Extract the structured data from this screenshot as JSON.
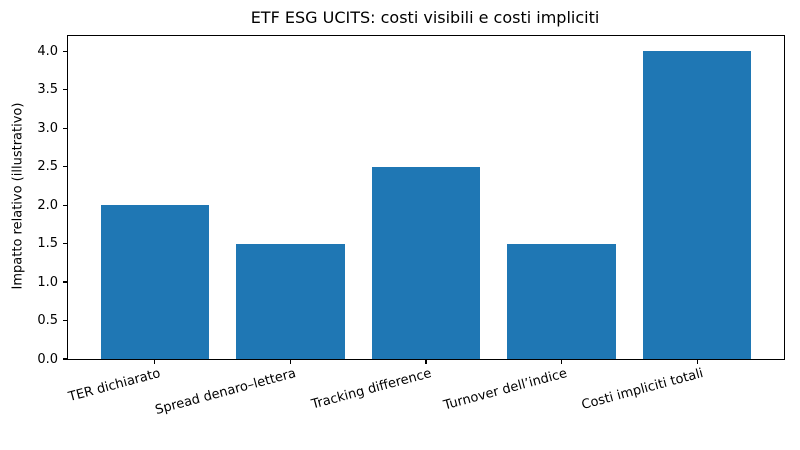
{
  "chart_data": {
    "type": "bar",
    "title": "ETF ESG UCITS: costi visibili e costi impliciti",
    "ylabel": "Impatto relativo (illustrativo)",
    "xlabel": "",
    "categories": [
      "TER dichiarato",
      "Spread denaro–lettera",
      "Tracking difference",
      "Turnover dell’indice",
      "Costi impliciti totali"
    ],
    "values": [
      2.0,
      1.5,
      2.5,
      1.5,
      4.0
    ],
    "yticks": [
      0.0,
      0.5,
      1.0,
      1.5,
      2.0,
      2.5,
      3.0,
      3.5,
      4.0
    ],
    "ytick_label_format": "one_decimal",
    "ylim": [
      0,
      4.2
    ],
    "xlim": [
      -0.64,
      4.64
    ],
    "bar_width": 0.8,
    "bar_color": "#1f77b4",
    "axis_color": "#000000",
    "background_color": "#ffffff",
    "grid": false,
    "legend_position": "none",
    "xtick_rotation_deg": 15
  }
}
